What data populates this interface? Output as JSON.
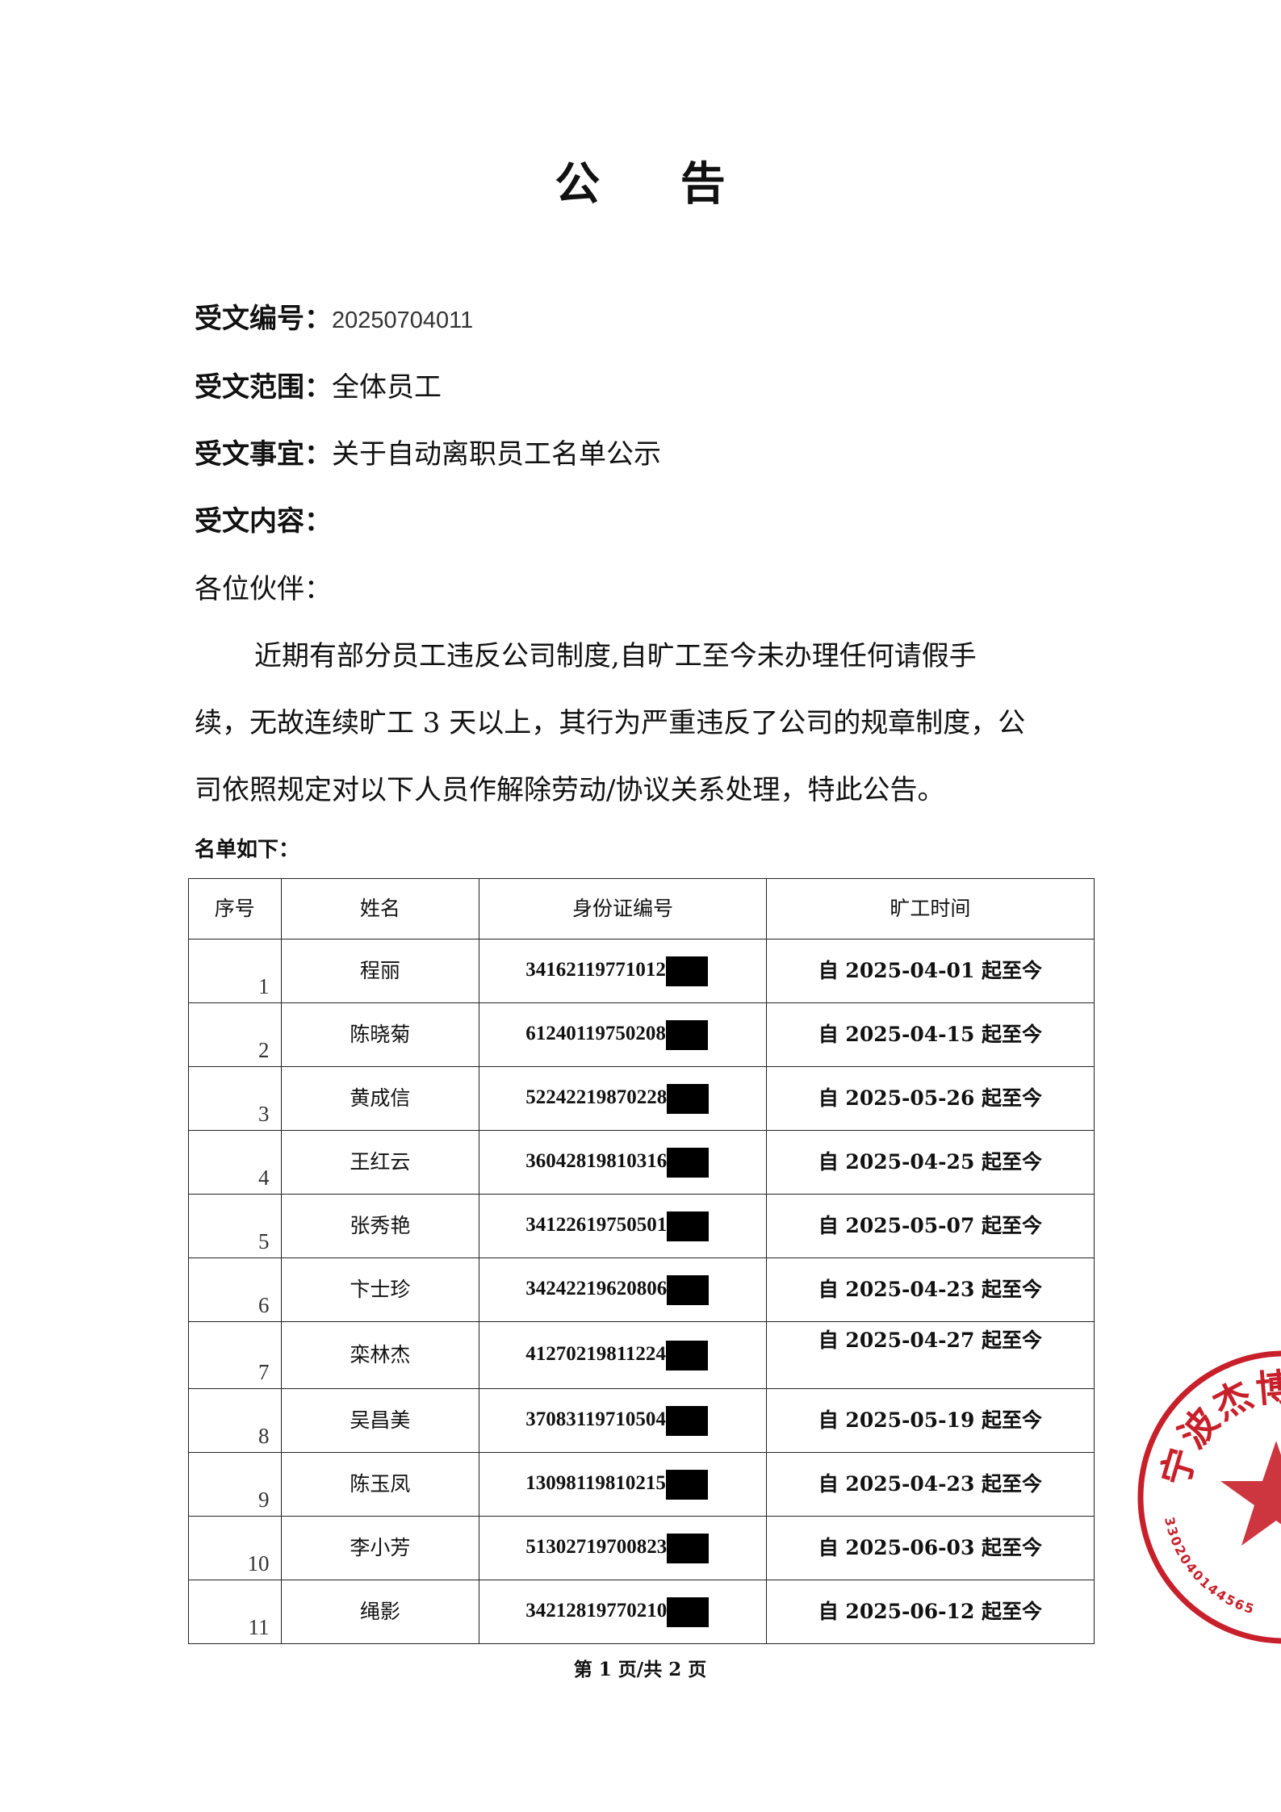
{
  "title": "公 告",
  "fields": [
    {
      "label": "受文编号：",
      "value": "20250704011"
    },
    {
      "label": "受文范围：",
      "value": "全体员工"
    },
    {
      "label": "受文事宜：",
      "value": "关于自动离职员工名单公示"
    },
    {
      "label": "受文内容：",
      "value": ""
    }
  ],
  "greeting": "各位伙伴：",
  "paragraph_lines": [
    "近期有部分员工违反公司制度,自旷工至今未办理任何请假手",
    "续，无故连续旷工 3 天以上，其行为严重违反了公司的规章制度，公",
    "司依照规定对以下人员作解除劳动/协议关系处理，特此公告。"
  ],
  "list_heading": "名单如下：",
  "table": {
    "headers": [
      "序号",
      "姓名",
      "身份证编号",
      "旷工时间"
    ],
    "rows": [
      {
        "seq": "1",
        "name": "程丽",
        "id": "34162119771012",
        "date": "自 2025-04-01 起至今"
      },
      {
        "seq": "2",
        "name": "陈晓菊",
        "id": "61240119750208",
        "date": "自 2025-04-15 起至今"
      },
      {
        "seq": "3",
        "name": "黄成信",
        "id": "52242219870228",
        "date": "自 2025-05-26 起至今"
      },
      {
        "seq": "4",
        "name": "王红云",
        "id": "36042819810316",
        "date": "自 2025-04-25 起至今"
      },
      {
        "seq": "5",
        "name": "张秀艳",
        "id": "34122619750501",
        "date": "自 2025-05-07 起至今"
      },
      {
        "seq": "6",
        "name": "卞士珍",
        "id": "34242219620806",
        "date": "自 2025-04-23 起至今"
      },
      {
        "seq": "7",
        "name": "栾林杰",
        "id": "41270219811224",
        "date": "自 2025-04-27 起至今"
      },
      {
        "seq": "8",
        "name": "吴昌美",
        "id": "37083119710504",
        "date": "自 2025-05-19 起至今"
      },
      {
        "seq": "9",
        "name": "陈玉凤",
        "id": "13098119810215",
        "date": "自 2025-04-23 起至今"
      },
      {
        "seq": "10",
        "name": "李小芳",
        "id": "51302719700823",
        "date": "自 2025-06-03 起至今"
      },
      {
        "seq": "11",
        "name": "绳影",
        "id": "34212819770210",
        "date": "自 2025-06-12 起至今"
      }
    ]
  },
  "footer": "第 1 页/共 2 页",
  "stamp": {
    "text": "宁波杰博",
    "number": "3302040144565",
    "color": "#c8202a"
  }
}
